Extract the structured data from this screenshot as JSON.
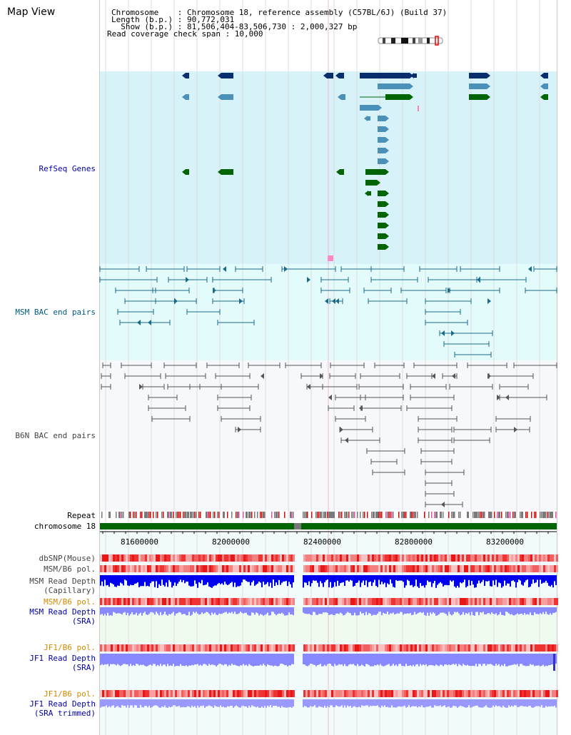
{
  "header": {
    "title": "Map View",
    "chromosome_line": "Chromosome    : Chromosome 18, reference assembly (C57BL/6J) (Build 37)",
    "length_line": "Length (b.p.) : 90,772,031",
    "show_line": "  Show (b.p.) : 81,506,404-83,506,730 : 2,000,327 bp",
    "coverage_line": "Read coverage check span : 10,000"
  },
  "tracks": {
    "refseq": "RefSeq Genes",
    "msm_bac": "MSM BAC end pairs",
    "b6n_bac": "B6N BAC end pairs",
    "repeat": "Repeat",
    "chromosome": "chromosome 18",
    "dbsnp": "dbSNP(Mouse)",
    "msm_b6_pol": "MSM/B6 pol.",
    "msm_depth_cap_1": "MSM Read Depth",
    "msm_depth_cap_2": "(Capillary)",
    "msm_b6_pol_2": "MSM/B6 pol.",
    "msm_depth_sra_1": "MSM Read Depth",
    "msm_depth_sra_2": "(SRA)",
    "jf1_b6_pol": "JF1/B6 pol.",
    "jf1_depth_sra_1": "JF1 Read Depth",
    "jf1_depth_sra_2": "(SRA)",
    "jf1_b6_pol_2": "JF1/B6 pol.",
    "jf1_depth_trim_1": "JF1 Read Depth",
    "jf1_depth_trim_2": "(SRA trimmed)"
  },
  "axis": {
    "ticks": [
      "81600000",
      "82000000",
      "82400000",
      "82800000",
      "83200000"
    ]
  },
  "colors": {
    "refseq_bg": "#d8f2fa",
    "msm_bg": "#e4fbfb",
    "b6n_bg": "#f6f8fb",
    "gene_navy": "#082e6e",
    "gene_blue": "#4a90b8",
    "gene_green": "#006400",
    "bac_teal": "#1a6a8a",
    "bac_gray": "#555555",
    "chrom_green": "#006400",
    "depth_blue": "#0000ee",
    "depth_lavender": "#8888ff",
    "pol_red": "#ee3333"
  }
}
